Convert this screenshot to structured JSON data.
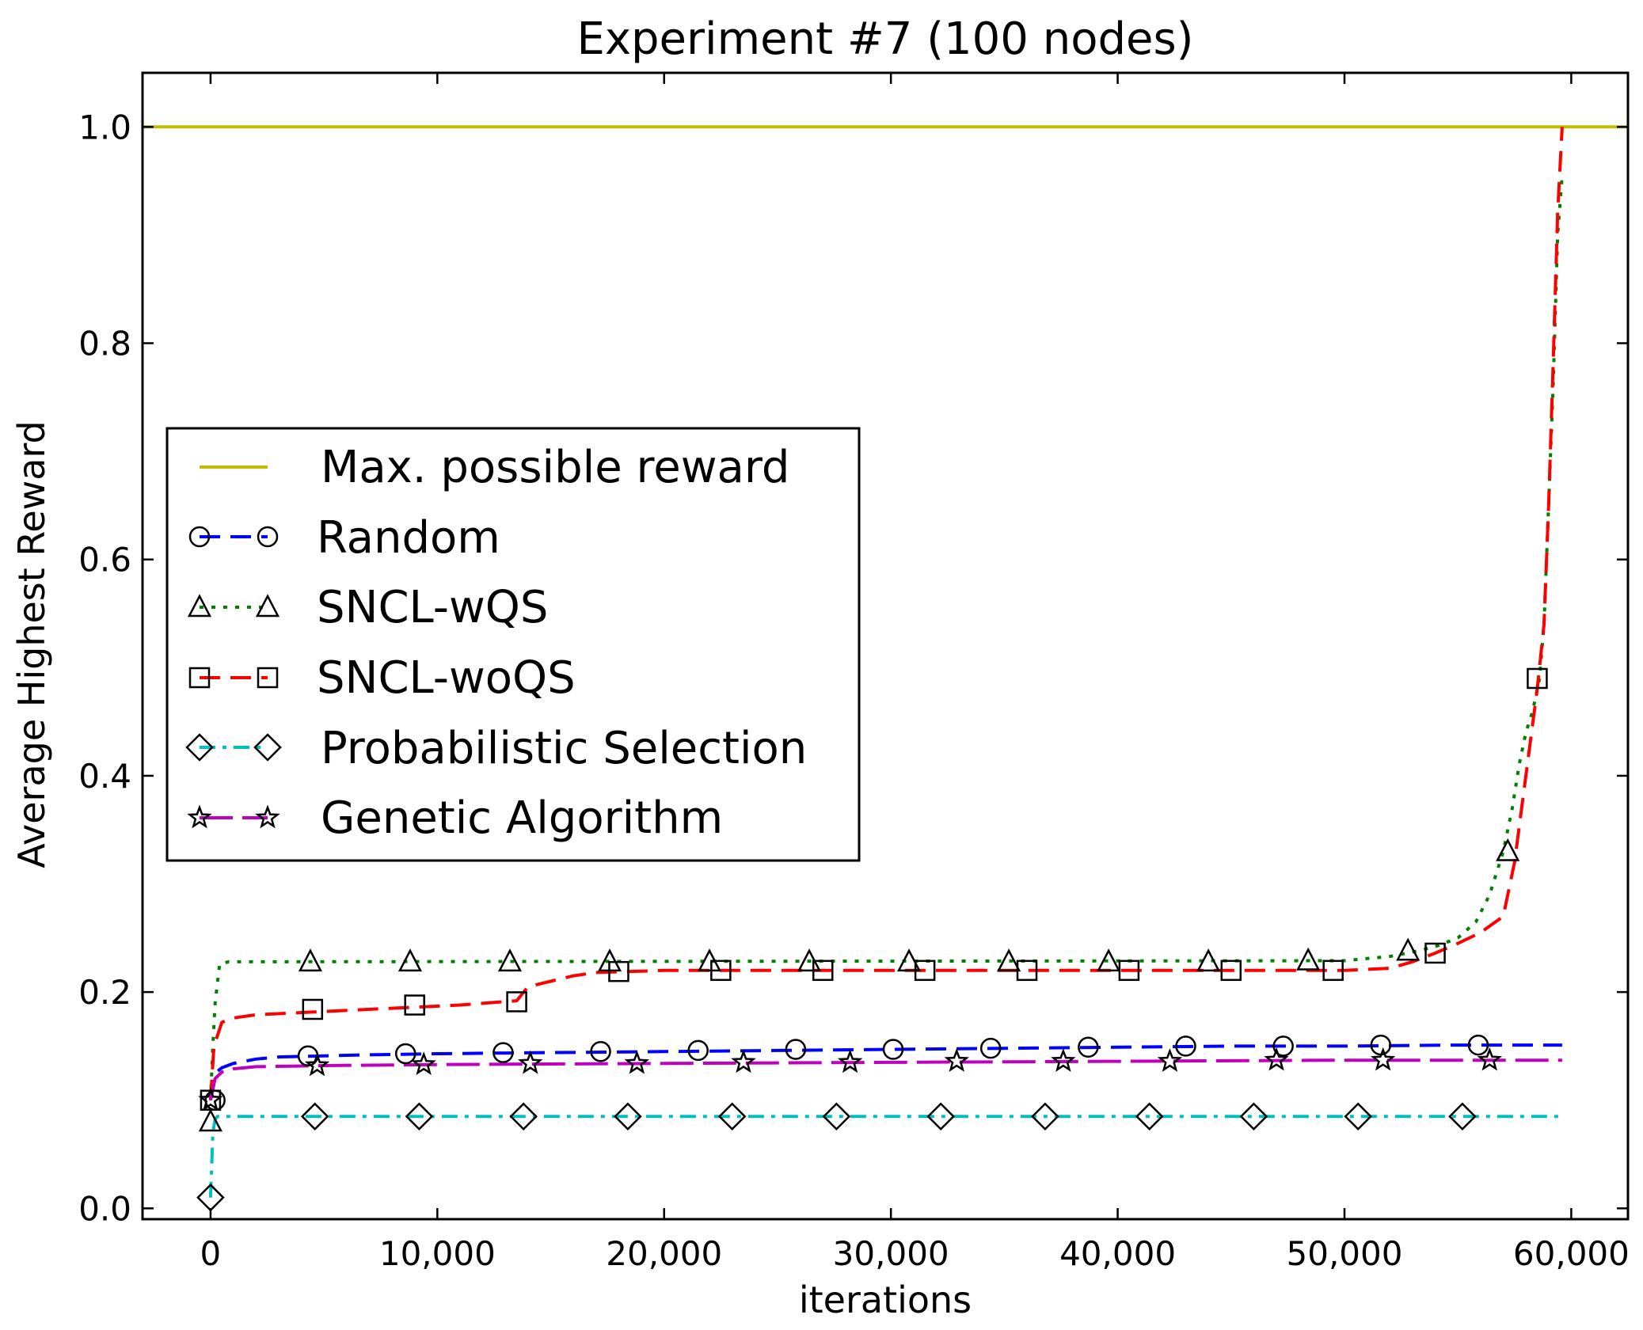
{
  "chart_data": {
    "type": "line",
    "title": "Experiment #7 (100 nodes)",
    "xlabel": "iterations",
    "ylabel": "Average Highest Reward",
    "xlim": [
      -3000,
      62500
    ],
    "ylim": [
      -0.01,
      1.05
    ],
    "xticks": [
      0,
      10000,
      20000,
      30000,
      40000,
      50000,
      60000
    ],
    "xtick_labels": [
      "0",
      "10,000",
      "20,000",
      "30,000",
      "40,000",
      "50,000",
      "60,000"
    ],
    "yticks": [
      0.0,
      0.2,
      0.4,
      0.6,
      0.8,
      1.0
    ],
    "ytick_labels": [
      "0.0",
      "0.2",
      "0.4",
      "0.6",
      "0.8",
      "1.0"
    ],
    "grid": false,
    "legend_position": "center-left",
    "series": [
      {
        "name": "Max. possible reward",
        "color": "#bfbf00",
        "dash": "solid",
        "marker": "none",
        "x": [
          -3000,
          62500
        ],
        "y": [
          1.0,
          1.0
        ],
        "markers_x": [],
        "markers_y": []
      },
      {
        "name": "Random",
        "color": "#0000ff",
        "dash": "dashed",
        "marker": "circle",
        "x": [
          0,
          200,
          500,
          1000,
          2000,
          3000,
          5000,
          7000,
          10000,
          15000,
          20000,
          25000,
          30000,
          35000,
          40000,
          45000,
          50000,
          55000,
          59600
        ],
        "y": [
          0.1,
          0.125,
          0.13,
          0.134,
          0.138,
          0.14,
          0.141,
          0.142,
          0.143,
          0.144,
          0.145,
          0.146,
          0.147,
          0.148,
          0.149,
          0.15,
          0.15,
          0.151,
          0.151
        ],
        "markers_x": [
          200,
          4300,
          8600,
          12900,
          17200,
          21500,
          25800,
          30100,
          34400,
          38700,
          43000,
          47300,
          51600,
          55900
        ],
        "markers_y": [
          0.1,
          0.141,
          0.143,
          0.144,
          0.145,
          0.146,
          0.147,
          0.147,
          0.148,
          0.149,
          0.15,
          0.15,
          0.151,
          0.151
        ]
      },
      {
        "name": "SNCL-wQS",
        "color": "#008000",
        "dash": "dotted",
        "marker": "triangle",
        "x": [
          0,
          100,
          200,
          400,
          800,
          50000,
          51000,
          52000,
          53000,
          54000,
          55000,
          55800,
          56400,
          57000,
          57400,
          57700,
          58000,
          58300,
          58600,
          58800,
          59000,
          59200,
          59400,
          59600
        ],
        "y": [
          0.1,
          0.15,
          0.19,
          0.226,
          0.228,
          0.229,
          0.231,
          0.233,
          0.237,
          0.242,
          0.25,
          0.265,
          0.29,
          0.33,
          0.37,
          0.41,
          0.44,
          0.46,
          0.49,
          0.54,
          0.65,
          0.76,
          0.9,
          0.955
        ],
        "markers_x": [
          0,
          4400,
          8800,
          13200,
          17600,
          22000,
          26400,
          30800,
          35200,
          39600,
          44000,
          48400,
          52800,
          57200
        ],
        "markers_y": [
          0.08,
          0.228,
          0.228,
          0.228,
          0.228,
          0.228,
          0.228,
          0.228,
          0.228,
          0.228,
          0.228,
          0.229,
          0.238,
          0.33
        ]
      },
      {
        "name": "SNCL-woQS",
        "color": "#ff0000",
        "dash": "dashed",
        "marker": "square",
        "x": [
          0,
          150,
          500,
          1000,
          2000,
          5000,
          8000,
          11000,
          13500,
          14000,
          15000,
          16000,
          17000,
          20000,
          30000,
          40000,
          50000,
          52000,
          53000,
          54000,
          55000,
          56000,
          57000,
          57500,
          58000,
          58500,
          58800,
          59000,
          59200,
          59400,
          59600
        ],
        "y": [
          0.1,
          0.15,
          0.172,
          0.176,
          0.179,
          0.182,
          0.185,
          0.188,
          0.192,
          0.205,
          0.21,
          0.215,
          0.218,
          0.22,
          0.22,
          0.22,
          0.22,
          0.222,
          0.228,
          0.236,
          0.245,
          0.255,
          0.27,
          0.32,
          0.4,
          0.48,
          0.54,
          0.65,
          0.78,
          0.92,
          1.0
        ],
        "markers_x": [
          0,
          4500,
          9000,
          13500,
          18000,
          22500,
          27000,
          31500,
          36000,
          40500,
          45000,
          49500,
          54000,
          58500
        ],
        "markers_y": [
          0.1,
          0.184,
          0.188,
          0.191,
          0.219,
          0.22,
          0.22,
          0.22,
          0.22,
          0.22,
          0.22,
          0.22,
          0.236,
          0.49
        ]
      },
      {
        "name": "Probabilistic Selection",
        "color": "#00bfbf",
        "dash": "dashdot",
        "marker": "diamond",
        "x": [
          0,
          50,
          100,
          200,
          300,
          500,
          59600
        ],
        "y": [
          0.01,
          0.04,
          0.07,
          0.082,
          0.085,
          0.085,
          0.085
        ],
        "markers_x": [
          0,
          4600,
          9200,
          13800,
          18400,
          23000,
          27600,
          32200,
          36800,
          41400,
          46000,
          50600,
          55200
        ],
        "markers_y": [
          0.01,
          0.085,
          0.085,
          0.085,
          0.085,
          0.085,
          0.085,
          0.085,
          0.085,
          0.085,
          0.085,
          0.085,
          0.085
        ]
      },
      {
        "name": "Genetic Algorithm",
        "color": "#bf00bf",
        "dash": "longdash",
        "marker": "star",
        "x": [
          0,
          200,
          500,
          1000,
          2000,
          5000,
          10000,
          20000,
          30000,
          40000,
          50000,
          59600
        ],
        "y": [
          0.1,
          0.12,
          0.126,
          0.129,
          0.131,
          0.132,
          0.133,
          0.134,
          0.135,
          0.136,
          0.137,
          0.137
        ],
        "markers_x": [
          0,
          4700,
          9400,
          14100,
          18800,
          23500,
          28200,
          32900,
          37600,
          42300,
          47000,
          51700,
          56400
        ],
        "markers_y": [
          0.1,
          0.132,
          0.133,
          0.134,
          0.134,
          0.135,
          0.135,
          0.136,
          0.136,
          0.136,
          0.137,
          0.137,
          0.137
        ]
      }
    ]
  }
}
